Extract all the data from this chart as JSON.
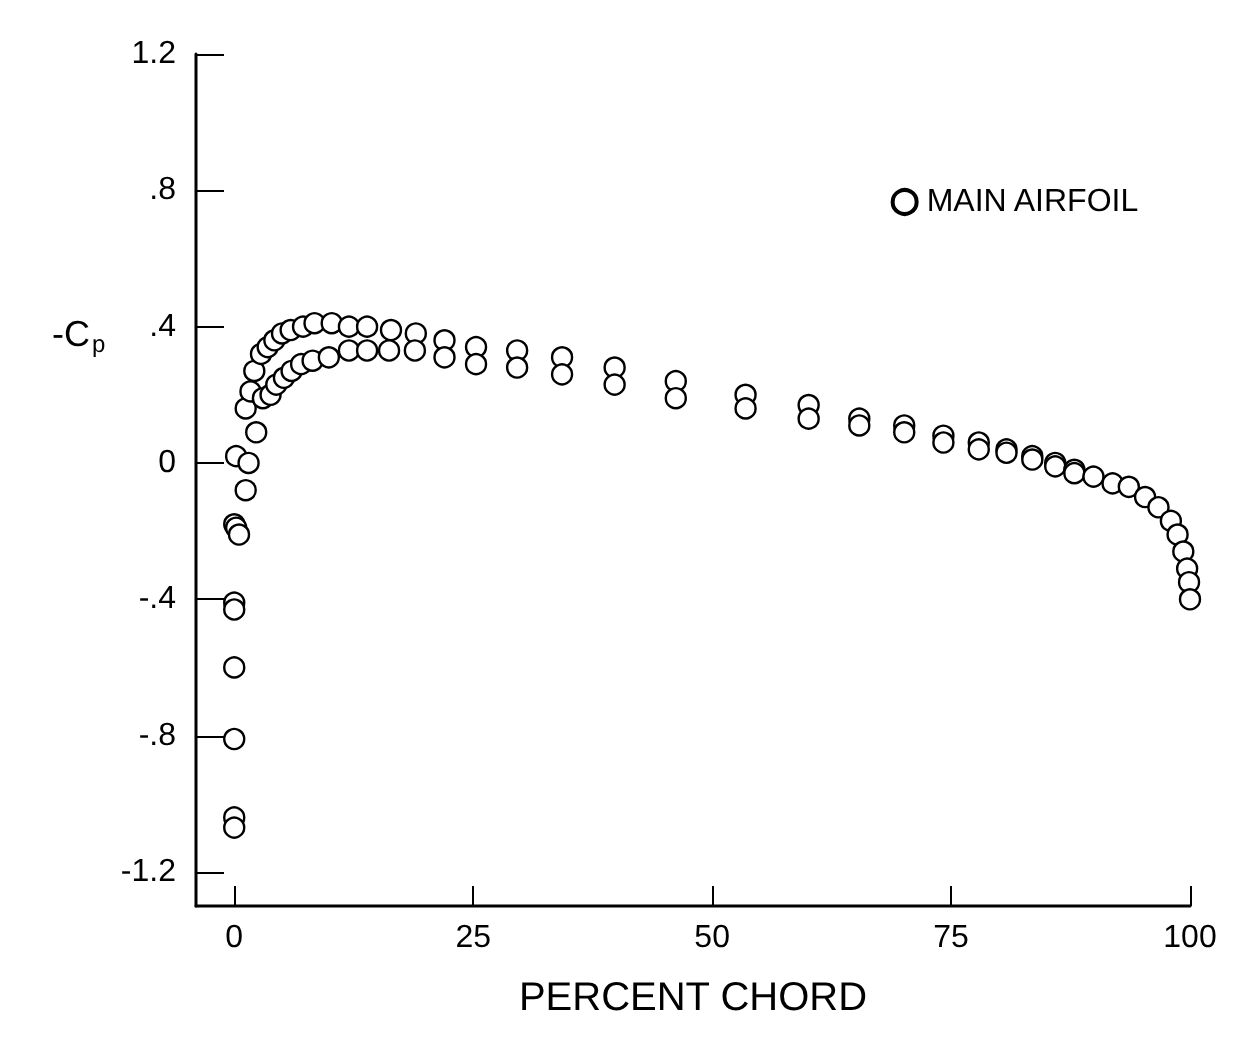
{
  "chart_data": {
    "type": "scatter",
    "xlabel": "PERCENT CHORD",
    "ylabel": "-C$_{p}$",
    "xlim": [
      -4,
      100
    ],
    "ylim": [
      -1.3,
      1.2
    ],
    "xticks": [
      0,
      25,
      50,
      75,
      100
    ],
    "yticks": [
      1.2,
      {
        "value": 0.8,
        "label": ".8"
      },
      {
        "value": 0.4,
        "label": ".4"
      },
      0,
      {
        "value": -0.4,
        "label": "-.4"
      },
      {
        "value": -0.8,
        "label": "-.8"
      },
      -1.2
    ],
    "grid": false,
    "legend": "top right",
    "marker": "circle",
    "series": [
      {
        "name": "MAIN AIRFOIL",
        "color": "#000000",
        "x": [
          0,
          0,
          0,
          0,
          0,
          0,
          0,
          0.2,
          0.5,
          1.2,
          0.2,
          1.5,
          2.3,
          1.2,
          1.7,
          2.1,
          2.8,
          3.5,
          4.2,
          5.0,
          5.9,
          7.2,
          8.4,
          10.2,
          12.0,
          13.9,
          16.4,
          19.0,
          22.0,
          25.3,
          3.0,
          3.8,
          4.4,
          5.2,
          6.0,
          7.0,
          8.2,
          9.9,
          12.0,
          13.9,
          16.2,
          18.9,
          22.0,
          25.3,
          29.6,
          29.6,
          34.3,
          34.3,
          39.8,
          39.8,
          46.2,
          46.2,
          53.5,
          53.5,
          60.1,
          60.1,
          65.4,
          65.4,
          70.1,
          70.1,
          74.2,
          74.2,
          77.9,
          77.9,
          80.8,
          80.8,
          83.5,
          83.5,
          85.9,
          85.9,
          87.9,
          87.9,
          89.9,
          91.9,
          93.6,
          95.3,
          96.7,
          98.0,
          98.7,
          99.3,
          99.7,
          99.9,
          100
        ],
        "values": [
          -1.04,
          -1.07,
          -0.81,
          -0.6,
          -0.41,
          -0.43,
          -0.18,
          -0.19,
          -0.21,
          -0.08,
          0.02,
          0.0,
          0.09,
          0.16,
          0.21,
          0.27,
          0.32,
          0.34,
          0.36,
          0.38,
          0.39,
          0.4,
          0.41,
          0.41,
          0.4,
          0.4,
          0.39,
          0.38,
          0.36,
          0.34,
          0.19,
          0.2,
          0.23,
          0.25,
          0.27,
          0.29,
          0.3,
          0.31,
          0.33,
          0.33,
          0.33,
          0.33,
          0.31,
          0.29,
          0.33,
          0.28,
          0.31,
          0.26,
          0.28,
          0.23,
          0.24,
          0.19,
          0.2,
          0.16,
          0.17,
          0.13,
          0.13,
          0.11,
          0.11,
          0.09,
          0.08,
          0.06,
          0.06,
          0.04,
          0.04,
          0.03,
          0.02,
          0.01,
          0.0,
          -0.01,
          -0.02,
          -0.03,
          -0.04,
          -0.06,
          -0.07,
          -0.1,
          -0.13,
          -0.17,
          -0.21,
          -0.26,
          -0.31,
          -0.35,
          -0.4
        ]
      }
    ]
  }
}
